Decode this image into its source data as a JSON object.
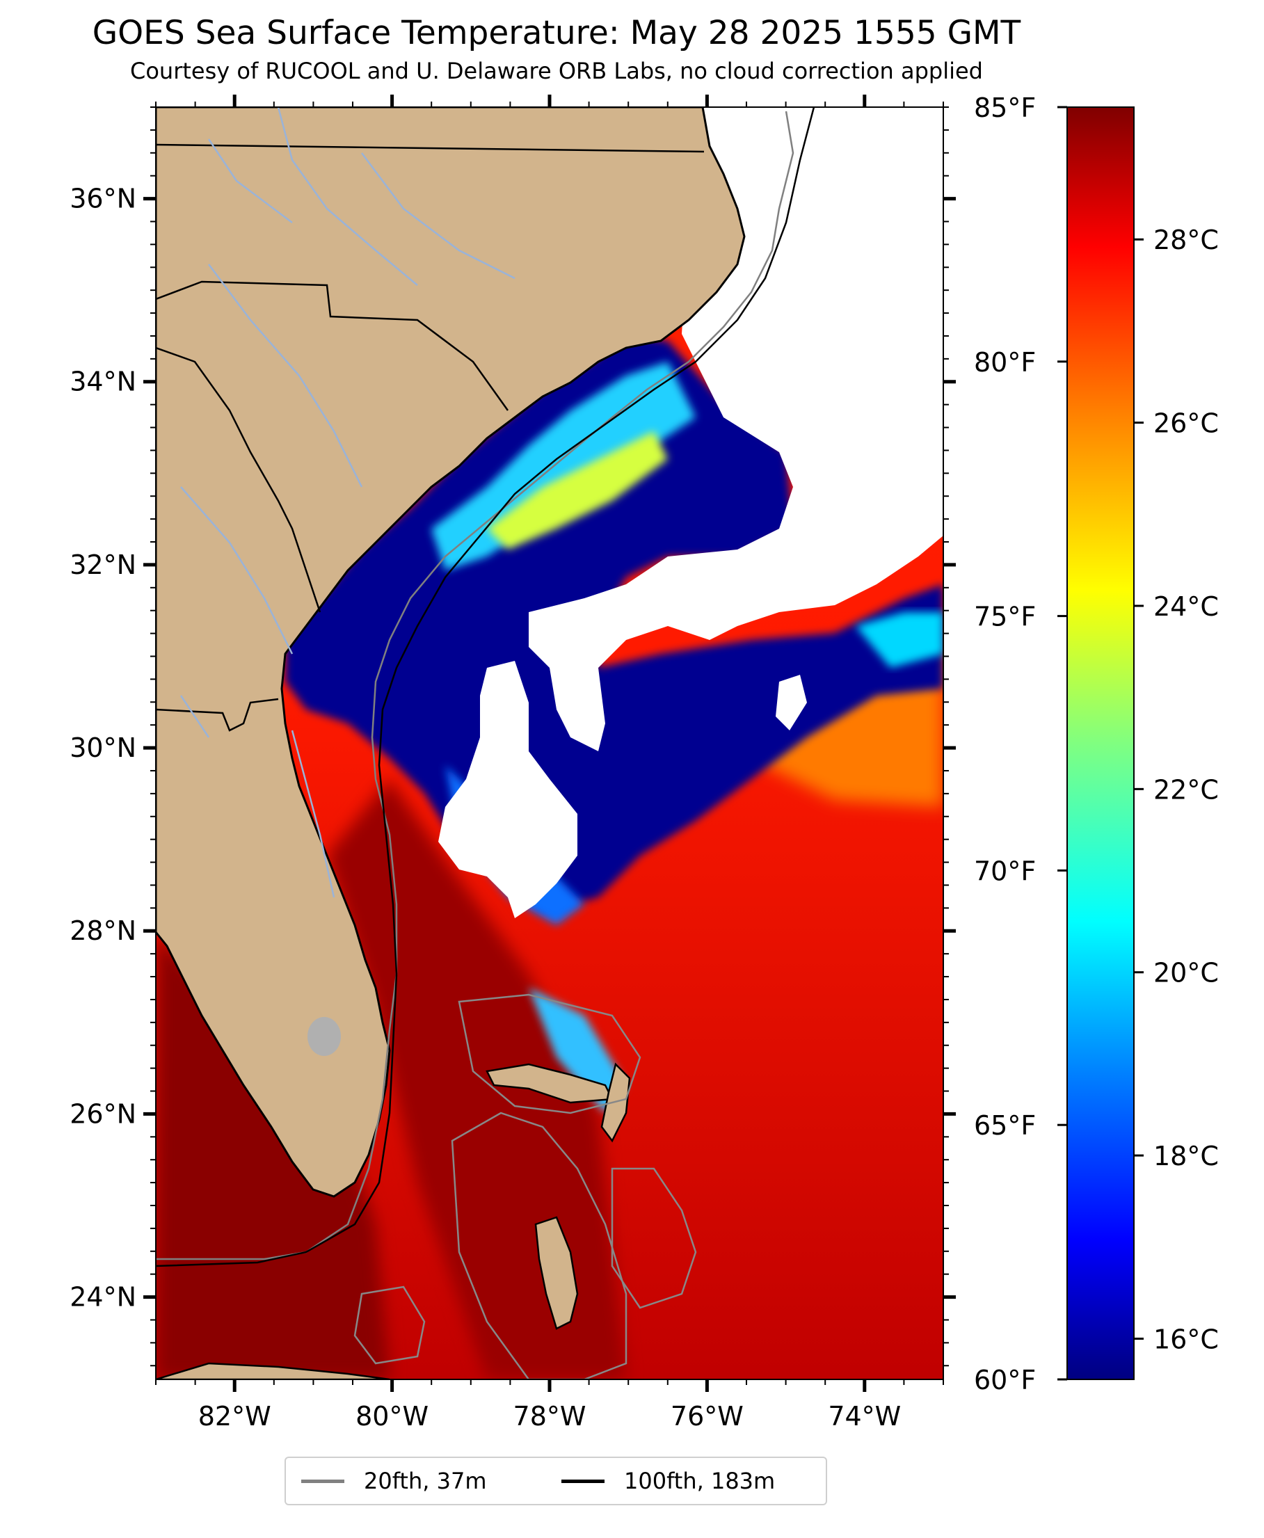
{
  "title": "GOES Sea Surface Temperature: May 28 2025 1555 GMT",
  "subtitle": "Courtesy of RUCOOL and U. Delaware ORB Labs, no cloud correction applied",
  "map": {
    "extent": {
      "lon_min": -83.0,
      "lon_max": -73.0,
      "lat_min": 23.1,
      "lat_max": 37.0
    },
    "lat_ticks": [
      "36°N",
      "34°N",
      "32°N",
      "30°N",
      "28°N",
      "26°N",
      "24°N"
    ],
    "lon_ticks": [
      "82°W",
      "80°W",
      "78°W",
      "76°W",
      "74°W"
    ],
    "land_color": "#d2b48c",
    "coastline_color": "#000000",
    "river_color": "#9ab3d8",
    "lake_color": "#b0b0b0",
    "no_data_color": "#ffffff"
  },
  "colorbar": {
    "colormap": "jet",
    "fahrenheit_ticks": [
      "85°F",
      "80°F",
      "75°F",
      "70°F",
      "65°F",
      "60°F"
    ],
    "celsius_ticks": [
      "28°C",
      "26°C",
      "24°C",
      "22°C",
      "20°C",
      "18°C",
      "16°C"
    ],
    "range_f": [
      60,
      85
    ],
    "colors": [
      "#000080",
      "#0000ff",
      "#0080ff",
      "#00ffff",
      "#80ff80",
      "#ffff00",
      "#ff8000",
      "#ff0000",
      "#800000"
    ]
  },
  "legend": {
    "items": [
      {
        "label": "20fth, 37m",
        "color": "#808080"
      },
      {
        "label": "100fth, 183m",
        "color": "#000000"
      }
    ]
  }
}
